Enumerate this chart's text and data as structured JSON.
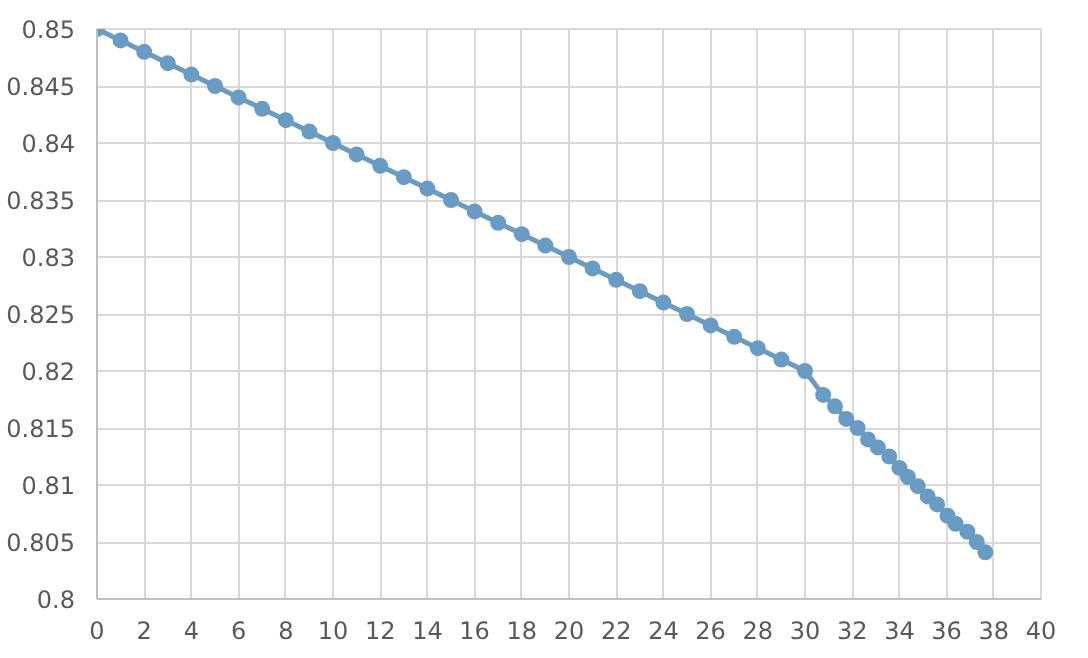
{
  "chart_data": {
    "type": "line",
    "x": [
      0,
      1,
      2,
      3,
      4,
      5,
      6,
      7,
      8,
      9,
      10,
      11,
      12,
      13,
      14,
      15,
      16,
      17,
      18,
      19,
      20,
      21,
      22,
      23,
      24,
      25,
      26,
      27,
      28,
      29,
      30,
      30.77,
      31.27,
      31.75,
      32.23,
      32.67,
      33.09,
      33.57,
      34.0,
      34.36,
      34.78,
      35.2,
      35.6,
      36.04,
      36.38,
      36.88,
      37.28,
      37.64
    ],
    "series": [
      {
        "color": "#6a9bc3",
        "values": [
          0.85,
          0.849,
          0.848,
          0.847,
          0.846,
          0.845,
          0.844,
          0.843,
          0.842,
          0.841,
          0.84,
          0.839,
          0.838,
          0.837,
          0.836,
          0.835,
          0.834,
          0.833,
          0.832,
          0.831,
          0.83,
          0.829,
          0.828,
          0.827,
          0.826,
          0.825,
          0.824,
          0.823,
          0.822,
          0.821,
          0.82,
          0.8179,
          0.8169,
          0.8158,
          0.815,
          0.814,
          0.8133,
          0.8125,
          0.8115,
          0.8107,
          0.8099,
          0.809,
          0.8083,
          0.8073,
          0.8066,
          0.8059,
          0.805,
          0.8041
        ]
      }
    ],
    "xlim": [
      0,
      40
    ],
    "xticks": [
      0,
      2,
      4,
      6,
      8,
      10,
      12,
      14,
      16,
      18,
      20,
      22,
      24,
      26,
      28,
      30,
      32,
      34,
      36,
      38,
      40
    ],
    "ylim": [
      0.8,
      0.85
    ],
    "yticks": [
      0.8,
      0.805,
      0.81,
      0.815,
      0.82,
      0.825,
      0.83,
      0.835,
      0.84,
      0.845,
      0.85
    ],
    "grid": true,
    "marker": "circle",
    "line_style": "solid"
  }
}
